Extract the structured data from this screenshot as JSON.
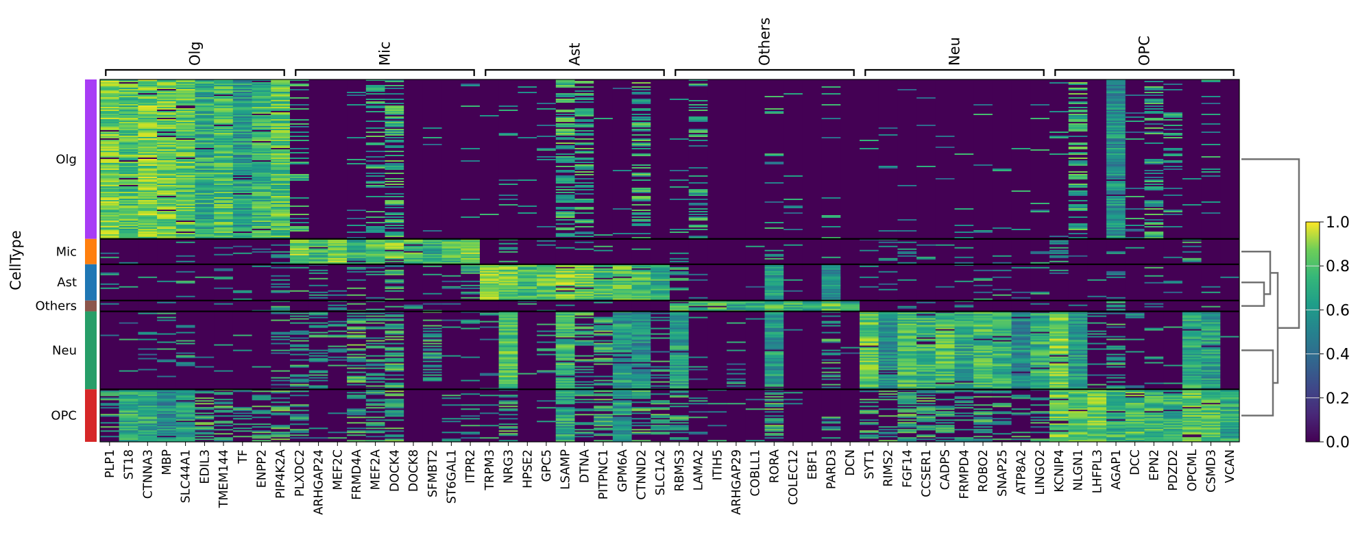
{
  "chart_data": {
    "type": "heatmap",
    "title": "",
    "ylabel": "CellType",
    "colormap": "viridis",
    "colorbar": {
      "min": 0.0,
      "max": 1.0,
      "ticks": [
        "0.0",
        "0.2",
        "0.4",
        "0.6",
        "0.8",
        "1.0"
      ]
    },
    "gene_groups": [
      {
        "name": "Olg",
        "genes": [
          "PLP1",
          "ST18",
          "CTNNA3",
          "MBP",
          "SLC44A1",
          "EDIL3",
          "TMEM144",
          "TF",
          "ENPP2",
          "PIP4K2A"
        ]
      },
      {
        "name": "Mic",
        "genes": [
          "PLXDC2",
          "ARHGAP24",
          "MEF2C",
          "FRMD4A",
          "MEF2A",
          "DOCK4",
          "DOCK8",
          "SFMBT2",
          "ST6GAL1",
          "ITPR2"
        ]
      },
      {
        "name": "Ast",
        "genes": [
          "TRPM3",
          "NRG3",
          "HPSE2",
          "GPC5",
          "LSAMP",
          "DTNA",
          "PITPNC1",
          "GPM6A",
          "CTNND2",
          "SLC1A2"
        ]
      },
      {
        "name": "Others",
        "genes": [
          "RBMS3",
          "LAMA2",
          "ITIH5",
          "ARHGAP29",
          "COBLL1",
          "RORA",
          "COLEC12",
          "EBF1",
          "PARD3",
          "DCN"
        ]
      },
      {
        "name": "Neu",
        "genes": [
          "SYT1",
          "RIMS2",
          "FGF14",
          "CCSER1",
          "CADPS",
          "FRMPD4",
          "ROBO2",
          "SNAP25",
          "ATP8A2",
          "LINGO2"
        ]
      },
      {
        "name": "OPC",
        "genes": [
          "KCNIP4",
          "NLGN1",
          "LHFPL3",
          "AGAP1",
          "DCC",
          "EPN2",
          "PDZD2",
          "OPCML",
          "CSMD3",
          "VCAN"
        ]
      }
    ],
    "cell_types": [
      {
        "name": "Olg",
        "color": "#a83cf5",
        "relative_size": 44
      },
      {
        "name": "Mic",
        "color": "#ff7f0e",
        "relative_size": 7
      },
      {
        "name": "Ast",
        "color": "#1f77b4",
        "relative_size": 10
      },
      {
        "name": "Others",
        "color": "#8c564b",
        "relative_size": 3
      },
      {
        "name": "Neu",
        "color": "#279e68",
        "relative_size": 21.5
      },
      {
        "name": "OPC",
        "color": "#d62728",
        "relative_size": 14.5
      }
    ],
    "mean_expression": {
      "Olg": [
        0.78,
        0.72,
        0.8,
        0.78,
        0.74,
        0.62,
        0.7,
        0.55,
        0.66,
        0.72,
        0.25,
        0.02,
        0.0,
        0.1,
        0.28,
        0.4,
        0.0,
        0.05,
        0.0,
        0.05,
        0.02,
        0.06,
        0.02,
        0.05,
        0.45,
        0.35,
        0.02,
        0.02,
        0.4,
        0.0,
        0.03,
        0.25,
        0.0,
        0.0,
        0.0,
        0.15,
        0.03,
        0.0,
        0.05,
        0.0,
        0.03,
        0.03,
        0.02,
        0.02,
        0.02,
        0.03,
        0.04,
        0.04,
        0.03,
        0.05,
        0.05,
        0.45,
        0.0,
        0.5,
        0.05,
        0.3,
        0.15,
        0.02,
        0.06,
        0.0
      ],
      "Mic": [
        0.05,
        0.02,
        0.03,
        0.1,
        0.06,
        0.02,
        0.03,
        0.01,
        0.02,
        0.12,
        0.8,
        0.65,
        0.78,
        0.62,
        0.72,
        0.8,
        0.72,
        0.62,
        0.7,
        0.82,
        0.05,
        0.15,
        0.02,
        0.05,
        0.1,
        0.15,
        0.1,
        0.05,
        0.08,
        0.02,
        0.1,
        0.03,
        0.0,
        0.03,
        0.02,
        0.15,
        0.05,
        0.0,
        0.05,
        0.0,
        0.1,
        0.12,
        0.1,
        0.08,
        0.06,
        0.08,
        0.06,
        0.08,
        0.05,
        0.06,
        0.2,
        0.05,
        0.0,
        0.02,
        0.15,
        0.0,
        0.1,
        0.15,
        0.0,
        0.0
      ],
      "Ast": [
        0.03,
        0.03,
        0.04,
        0.05,
        0.15,
        0.03,
        0.12,
        0.1,
        0.02,
        0.12,
        0.2,
        0.15,
        0.05,
        0.2,
        0.15,
        0.3,
        0.0,
        0.15,
        0.05,
        0.4,
        0.82,
        0.78,
        0.7,
        0.76,
        0.84,
        0.78,
        0.7,
        0.75,
        0.7,
        0.62,
        0.35,
        0.05,
        0.02,
        0.0,
        0.02,
        0.55,
        0.1,
        0.0,
        0.5,
        0.0,
        0.1,
        0.08,
        0.06,
        0.08,
        0.1,
        0.08,
        0.05,
        0.1,
        0.05,
        0.05,
        0.1,
        0.0,
        0.05,
        0.12,
        0.03,
        0.15,
        0.12,
        0.02,
        0.1,
        0.1
      ],
      "Others": [
        0.1,
        0.03,
        0.05,
        0.04,
        0.05,
        0.03,
        0.04,
        0.02,
        0.05,
        0.15,
        0.2,
        0.05,
        0.1,
        0.15,
        0.05,
        0.1,
        0.05,
        0.1,
        0.2,
        0.1,
        0.05,
        0.05,
        0.03,
        0.1,
        0.08,
        0.05,
        0.05,
        0.1,
        0.05,
        0.08,
        0.72,
        0.68,
        0.7,
        0.6,
        0.65,
        0.7,
        0.68,
        0.55,
        0.74,
        0.6,
        0.05,
        0.04,
        0.05,
        0.04,
        0.05,
        0.05,
        0.04,
        0.05,
        0.03,
        0.04,
        0.1,
        0.05,
        0.0,
        0.25,
        0.0,
        0.1,
        0.15,
        0.05,
        0.03,
        0.0
      ],
      "Neu": [
        0.03,
        0.03,
        0.1,
        0.1,
        0.08,
        0.05,
        0.02,
        0.02,
        0.03,
        0.15,
        0.3,
        0.35,
        0.15,
        0.45,
        0.3,
        0.45,
        0.0,
        0.3,
        0.05,
        0.15,
        0.1,
        0.72,
        0.02,
        0.15,
        0.65,
        0.4,
        0.4,
        0.55,
        0.5,
        0.2,
        0.55,
        0.05,
        0.02,
        0.15,
        0.02,
        0.55,
        0.02,
        0.0,
        0.25,
        0.02,
        0.75,
        0.5,
        0.68,
        0.65,
        0.7,
        0.58,
        0.68,
        0.64,
        0.48,
        0.64,
        0.8,
        0.55,
        0.1,
        0.3,
        0.1,
        0.1,
        0.1,
        0.6,
        0.55,
        0.02
      ],
      "OPC": [
        0.3,
        0.62,
        0.6,
        0.5,
        0.55,
        0.45,
        0.35,
        0.25,
        0.4,
        0.45,
        0.25,
        0.05,
        0.05,
        0.3,
        0.25,
        0.45,
        0.0,
        0.05,
        0.15,
        0.2,
        0.05,
        0.4,
        0.0,
        0.05,
        0.6,
        0.4,
        0.4,
        0.55,
        0.45,
        0.35,
        0.35,
        0.1,
        0.02,
        0.05,
        0.05,
        0.45,
        0.05,
        0.0,
        0.2,
        0.0,
        0.35,
        0.3,
        0.45,
        0.4,
        0.35,
        0.35,
        0.35,
        0.35,
        0.25,
        0.2,
        0.75,
        0.72,
        0.78,
        0.65,
        0.7,
        0.66,
        0.62,
        0.74,
        0.7,
        0.6
      ]
    }
  }
}
